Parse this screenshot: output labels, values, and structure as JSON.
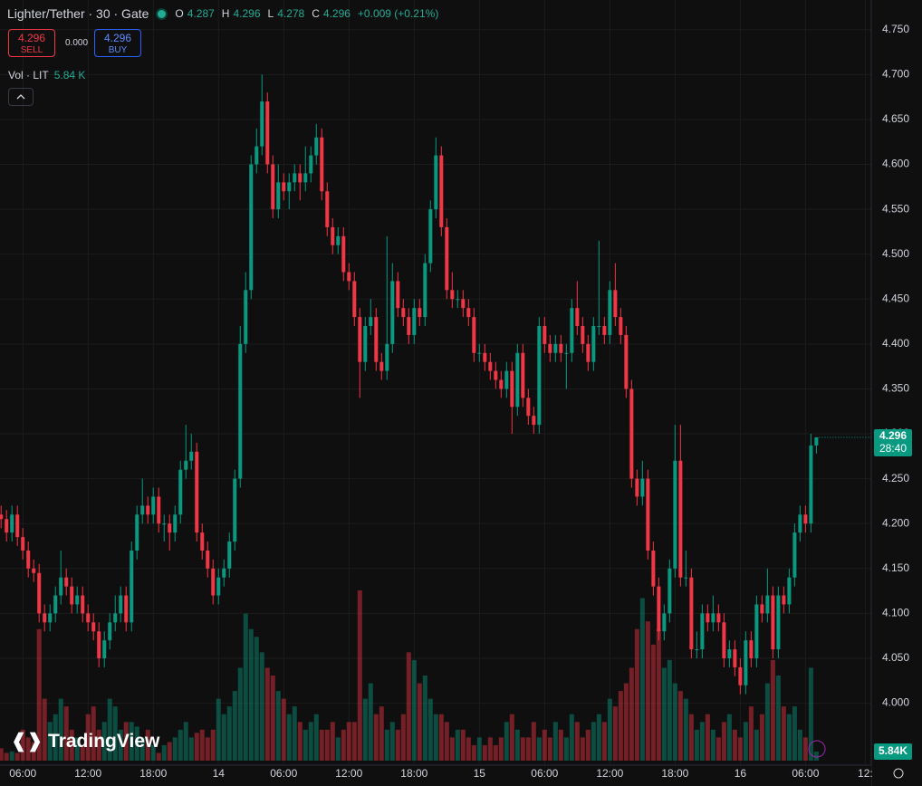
{
  "chart_data": {
    "type": "candlestick",
    "title": "Lighter/Tether · 30 · Gate",
    "ohlc_labels": [
      "O",
      "H",
      "L",
      "C"
    ],
    "change": "+0.009 (+0.21%)",
    "trade": {
      "sell_price": "4.296",
      "sell": "SELL",
      "spread": "0.000",
      "buy_price": "4.296",
      "buy": "BUY"
    },
    "volume_label": "Vol · LIT",
    "volume_value": "5.84 K",
    "last_volume_label": "5.84K",
    "countdown": "28:40",
    "brand": "TradingView",
    "up_color": "#089981",
    "down_color": "#f23645",
    "open": [
      4.21,
      4.205,
      4.19,
      4.21,
      4.185,
      4.17,
      4.15,
      4.145,
      4.1,
      4.09,
      4.1,
      4.12,
      4.14,
      4.13,
      4.11,
      4.12,
      4.1,
      4.09,
      4.08,
      4.05,
      4.07,
      4.09,
      4.1,
      4.12,
      4.09,
      4.17,
      4.21,
      4.22,
      4.21,
      4.23,
      4.2,
      4.2,
      4.19,
      4.21,
      4.26,
      4.27,
      4.28,
      4.19,
      4.17,
      4.15,
      4.12,
      4.14,
      4.15,
      4.18,
      4.25,
      4.4,
      4.46,
      4.6,
      4.62,
      4.67,
      4.6,
      4.55,
      4.58,
      4.57,
      4.58,
      4.59,
      4.58,
      4.59,
      4.61,
      4.63,
      4.57,
      4.53,
      4.51,
      4.52,
      4.48,
      4.47,
      4.43,
      4.38,
      4.42,
      4.43,
      4.38,
      4.37,
      4.4,
      4.47,
      4.44,
      4.43,
      4.41,
      4.44,
      4.43,
      4.49,
      4.55,
      4.61,
      4.53,
      4.46,
      4.45,
      4.45,
      4.44,
      4.43,
      4.39,
      4.39,
      4.38,
      4.37,
      4.36,
      4.35,
      4.37,
      4.33,
      4.39,
      4.34,
      4.32,
      4.31,
      4.42,
      4.4,
      4.39,
      4.4,
      4.39,
      4.39,
      4.44,
      4.42,
      4.4,
      4.38,
      4.42,
      4.42,
      4.41,
      4.46,
      4.43,
      4.41,
      4.35,
      4.25,
      4.23,
      4.25,
      4.17,
      4.13,
      4.08,
      4.1,
      4.15,
      4.27,
      4.14,
      4.14,
      4.06,
      4.06,
      4.1,
      4.09,
      4.1,
      4.09,
      4.05,
      4.06,
      4.04,
      4.02,
      4.07,
      4.05,
      4.11,
      4.1,
      4.12,
      4.06,
      4.12,
      4.11,
      4.14,
      4.19,
      4.21,
      4.2,
      4.287
    ],
    "high": [
      4.22,
      4.215,
      4.22,
      4.22,
      4.195,
      4.18,
      4.16,
      4.155,
      4.11,
      4.11,
      4.13,
      4.17,
      4.15,
      4.14,
      4.13,
      4.13,
      4.11,
      4.1,
      4.09,
      4.08,
      4.1,
      4.12,
      4.13,
      4.13,
      4.18,
      4.22,
      4.25,
      4.23,
      4.24,
      4.24,
      4.21,
      4.21,
      4.22,
      4.27,
      4.31,
      4.3,
      4.29,
      4.2,
      4.18,
      4.16,
      4.15,
      4.16,
      4.19,
      4.26,
      4.42,
      4.48,
      4.61,
      4.64,
      4.7,
      4.68,
      4.61,
      4.6,
      4.59,
      4.59,
      4.6,
      4.6,
      4.62,
      4.62,
      4.645,
      4.64,
      4.58,
      4.54,
      4.53,
      4.53,
      4.49,
      4.48,
      4.44,
      4.43,
      4.45,
      4.44,
      4.39,
      4.52,
      4.49,
      4.48,
      4.45,
      4.44,
      4.45,
      4.45,
      4.5,
      4.56,
      4.63,
      4.62,
      4.54,
      4.48,
      4.46,
      4.46,
      4.45,
      4.44,
      4.4,
      4.4,
      4.39,
      4.38,
      4.37,
      4.38,
      4.38,
      4.4,
      4.4,
      4.35,
      4.33,
      4.43,
      4.43,
      4.41,
      4.41,
      4.41,
      4.4,
      4.45,
      4.47,
      4.43,
      4.41,
      4.43,
      4.515,
      4.43,
      4.47,
      4.49,
      4.44,
      4.42,
      4.36,
      4.26,
      4.27,
      4.26,
      4.18,
      4.14,
      4.11,
      4.16,
      4.31,
      4.31,
      4.17,
      4.15,
      4.08,
      4.11,
      4.11,
      4.12,
      4.11,
      4.1,
      4.07,
      4.07,
      4.05,
      4.08,
      4.08,
      4.12,
      4.12,
      4.15,
      4.13,
      4.13,
      4.13,
      4.15,
      4.2,
      4.22,
      4.22,
      4.3,
      4.296
    ],
    "low": [
      4.195,
      4.18,
      4.18,
      4.175,
      4.16,
      4.14,
      4.135,
      4.09,
      4.08,
      4.08,
      4.09,
      4.11,
      4.12,
      4.1,
      4.1,
      4.09,
      4.08,
      4.07,
      4.04,
      4.04,
      4.06,
      4.08,
      4.09,
      4.08,
      4.08,
      4.16,
      4.2,
      4.2,
      4.2,
      4.19,
      4.18,
      4.17,
      4.18,
      4.2,
      4.25,
      4.26,
      4.18,
      4.16,
      4.14,
      4.11,
      4.11,
      4.13,
      4.14,
      4.17,
      4.24,
      4.39,
      4.45,
      4.59,
      4.61,
      4.59,
      4.54,
      4.54,
      4.56,
      4.55,
      4.57,
      4.56,
      4.57,
      4.58,
      4.6,
      4.56,
      4.52,
      4.5,
      4.5,
      4.47,
      4.46,
      4.42,
      4.34,
      4.37,
      4.41,
      4.37,
      4.36,
      4.36,
      4.39,
      4.43,
      4.42,
      4.4,
      4.4,
      4.42,
      4.42,
      4.48,
      4.54,
      4.52,
      4.45,
      4.44,
      4.44,
      4.43,
      4.42,
      4.38,
      4.38,
      4.37,
      4.36,
      4.35,
      4.34,
      4.34,
      4.3,
      4.32,
      4.33,
      4.31,
      4.3,
      4.3,
      4.39,
      4.38,
      4.38,
      4.38,
      4.35,
      4.38,
      4.41,
      4.39,
      4.37,
      4.37,
      4.41,
      4.4,
      4.4,
      4.42,
      4.4,
      4.34,
      4.24,
      4.22,
      4.22,
      4.16,
      4.12,
      4.07,
      4.07,
      4.09,
      4.14,
      4.13,
      4.13,
      4.05,
      4.05,
      4.05,
      4.08,
      4.08,
      4.08,
      4.04,
      4.04,
      4.03,
      4.01,
      4.01,
      4.04,
      4.04,
      4.09,
      4.09,
      4.05,
      4.05,
      4.1,
      4.1,
      4.13,
      4.18,
      4.19,
      4.19,
      4.278
    ],
    "close": [
      4.205,
      4.19,
      4.21,
      4.185,
      4.17,
      4.15,
      4.145,
      4.1,
      4.09,
      4.1,
      4.12,
      4.14,
      4.13,
      4.11,
      4.12,
      4.1,
      4.09,
      4.08,
      4.05,
      4.07,
      4.09,
      4.1,
      4.12,
      4.09,
      4.17,
      4.21,
      4.22,
      4.21,
      4.23,
      4.2,
      4.2,
      4.19,
      4.21,
      4.26,
      4.27,
      4.28,
      4.19,
      4.17,
      4.15,
      4.12,
      4.14,
      4.15,
      4.18,
      4.25,
      4.4,
      4.46,
      4.6,
      4.62,
      4.67,
      4.6,
      4.55,
      4.58,
      4.57,
      4.58,
      4.59,
      4.58,
      4.59,
      4.61,
      4.63,
      4.57,
      4.53,
      4.51,
      4.52,
      4.48,
      4.47,
      4.43,
      4.38,
      4.42,
      4.43,
      4.38,
      4.37,
      4.4,
      4.47,
      4.44,
      4.43,
      4.41,
      4.44,
      4.43,
      4.49,
      4.55,
      4.61,
      4.53,
      4.46,
      4.45,
      4.45,
      4.44,
      4.43,
      4.39,
      4.39,
      4.38,
      4.37,
      4.36,
      4.35,
      4.37,
      4.33,
      4.39,
      4.34,
      4.32,
      4.31,
      4.42,
      4.4,
      4.39,
      4.4,
      4.39,
      4.39,
      4.44,
      4.42,
      4.4,
      4.38,
      4.42,
      4.42,
      4.41,
      4.46,
      4.43,
      4.41,
      4.35,
      4.25,
      4.23,
      4.25,
      4.17,
      4.13,
      4.08,
      4.1,
      4.15,
      4.27,
      4.14,
      4.14,
      4.06,
      4.06,
      4.1,
      4.09,
      4.1,
      4.09,
      4.05,
      4.06,
      4.04,
      4.02,
      4.07,
      4.05,
      4.11,
      4.1,
      4.12,
      4.06,
      4.12,
      4.11,
      4.14,
      4.19,
      4.21,
      4.2,
      4.287,
      4.296
    ],
    "volume": [
      8,
      5,
      6,
      5,
      20,
      15,
      12,
      85,
      40,
      25,
      30,
      40,
      35,
      20,
      15,
      10,
      30,
      35,
      20,
      25,
      40,
      35,
      20,
      25,
      25,
      22,
      15,
      20,
      10,
      5,
      10,
      12,
      15,
      20,
      25,
      15,
      18,
      20,
      15,
      20,
      40,
      30,
      35,
      45,
      60,
      95,
      85,
      80,
      70,
      60,
      55,
      45,
      40,
      30,
      35,
      25,
      20,
      25,
      30,
      20,
      20,
      25,
      15,
      20,
      25,
      25,
      110,
      40,
      50,
      30,
      35,
      20,
      25,
      20,
      30,
      70,
      65,
      50,
      55,
      40,
      30,
      30,
      25,
      15,
      20,
      20,
      15,
      10,
      15,
      10,
      15,
      10,
      15,
      25,
      30,
      20,
      15,
      15,
      25,
      15,
      20,
      15,
      25,
      20,
      15,
      30,
      25,
      15,
      20,
      25,
      30,
      25,
      40,
      35,
      45,
      50,
      60,
      85,
      105,
      90,
      75,
      85,
      60,
      65,
      50,
      45,
      40,
      30,
      20,
      25,
      30,
      20,
      15,
      25,
      30,
      20,
      15,
      25,
      35,
      20,
      30,
      50,
      65,
      55,
      35,
      30,
      35,
      20,
      15,
      60,
      5.84
    ],
    "xlim": [
      -0.2,
      160.1
    ],
    "xticks": [
      {
        "value": 4,
        "label": "06:00"
      },
      {
        "value": 16,
        "label": "12:00"
      },
      {
        "value": 28,
        "label": "18:00"
      },
      {
        "value": 40,
        "label": "14"
      },
      {
        "value": 52,
        "label": "06:00"
      },
      {
        "value": 64,
        "label": "12:00"
      },
      {
        "value": 76,
        "label": "18:00"
      },
      {
        "value": 88,
        "label": "15"
      },
      {
        "value": 100,
        "label": "06:00"
      },
      {
        "value": 112,
        "label": "12:00"
      },
      {
        "value": 124,
        "label": "18:00"
      },
      {
        "value": 136,
        "label": "16"
      },
      {
        "value": 148,
        "label": "06:00"
      },
      {
        "value": 159,
        "label": "12:"
      }
    ],
    "ylim": [
      3.931,
      4.783
    ],
    "yticks": [
      {
        "value": 4,
        "label": "4.000"
      },
      {
        "value": 4.05,
        "label": "4.050"
      },
      {
        "value": 4.1,
        "label": "4.100"
      },
      {
        "value": 4.15,
        "label": "4.150"
      },
      {
        "value": 4.2,
        "label": "4.200"
      },
      {
        "value": 4.25,
        "label": "4.250"
      },
      {
        "value": 4.3,
        "label": "4.300"
      },
      {
        "value": 4.35,
        "label": "4.350"
      },
      {
        "value": 4.4,
        "label": "4.400"
      },
      {
        "value": 4.45,
        "label": "4.450"
      },
      {
        "value": 4.5,
        "label": "4.500"
      },
      {
        "value": 4.55,
        "label": "4.550"
      },
      {
        "value": 4.6,
        "label": "4.600"
      },
      {
        "value": 4.65,
        "label": "4.650"
      },
      {
        "value": 4.7,
        "label": "4.700"
      },
      {
        "value": 4.75,
        "label": "4.750"
      }
    ],
    "volume_ylim": [
      0,
      110
    ],
    "grid": true
  }
}
